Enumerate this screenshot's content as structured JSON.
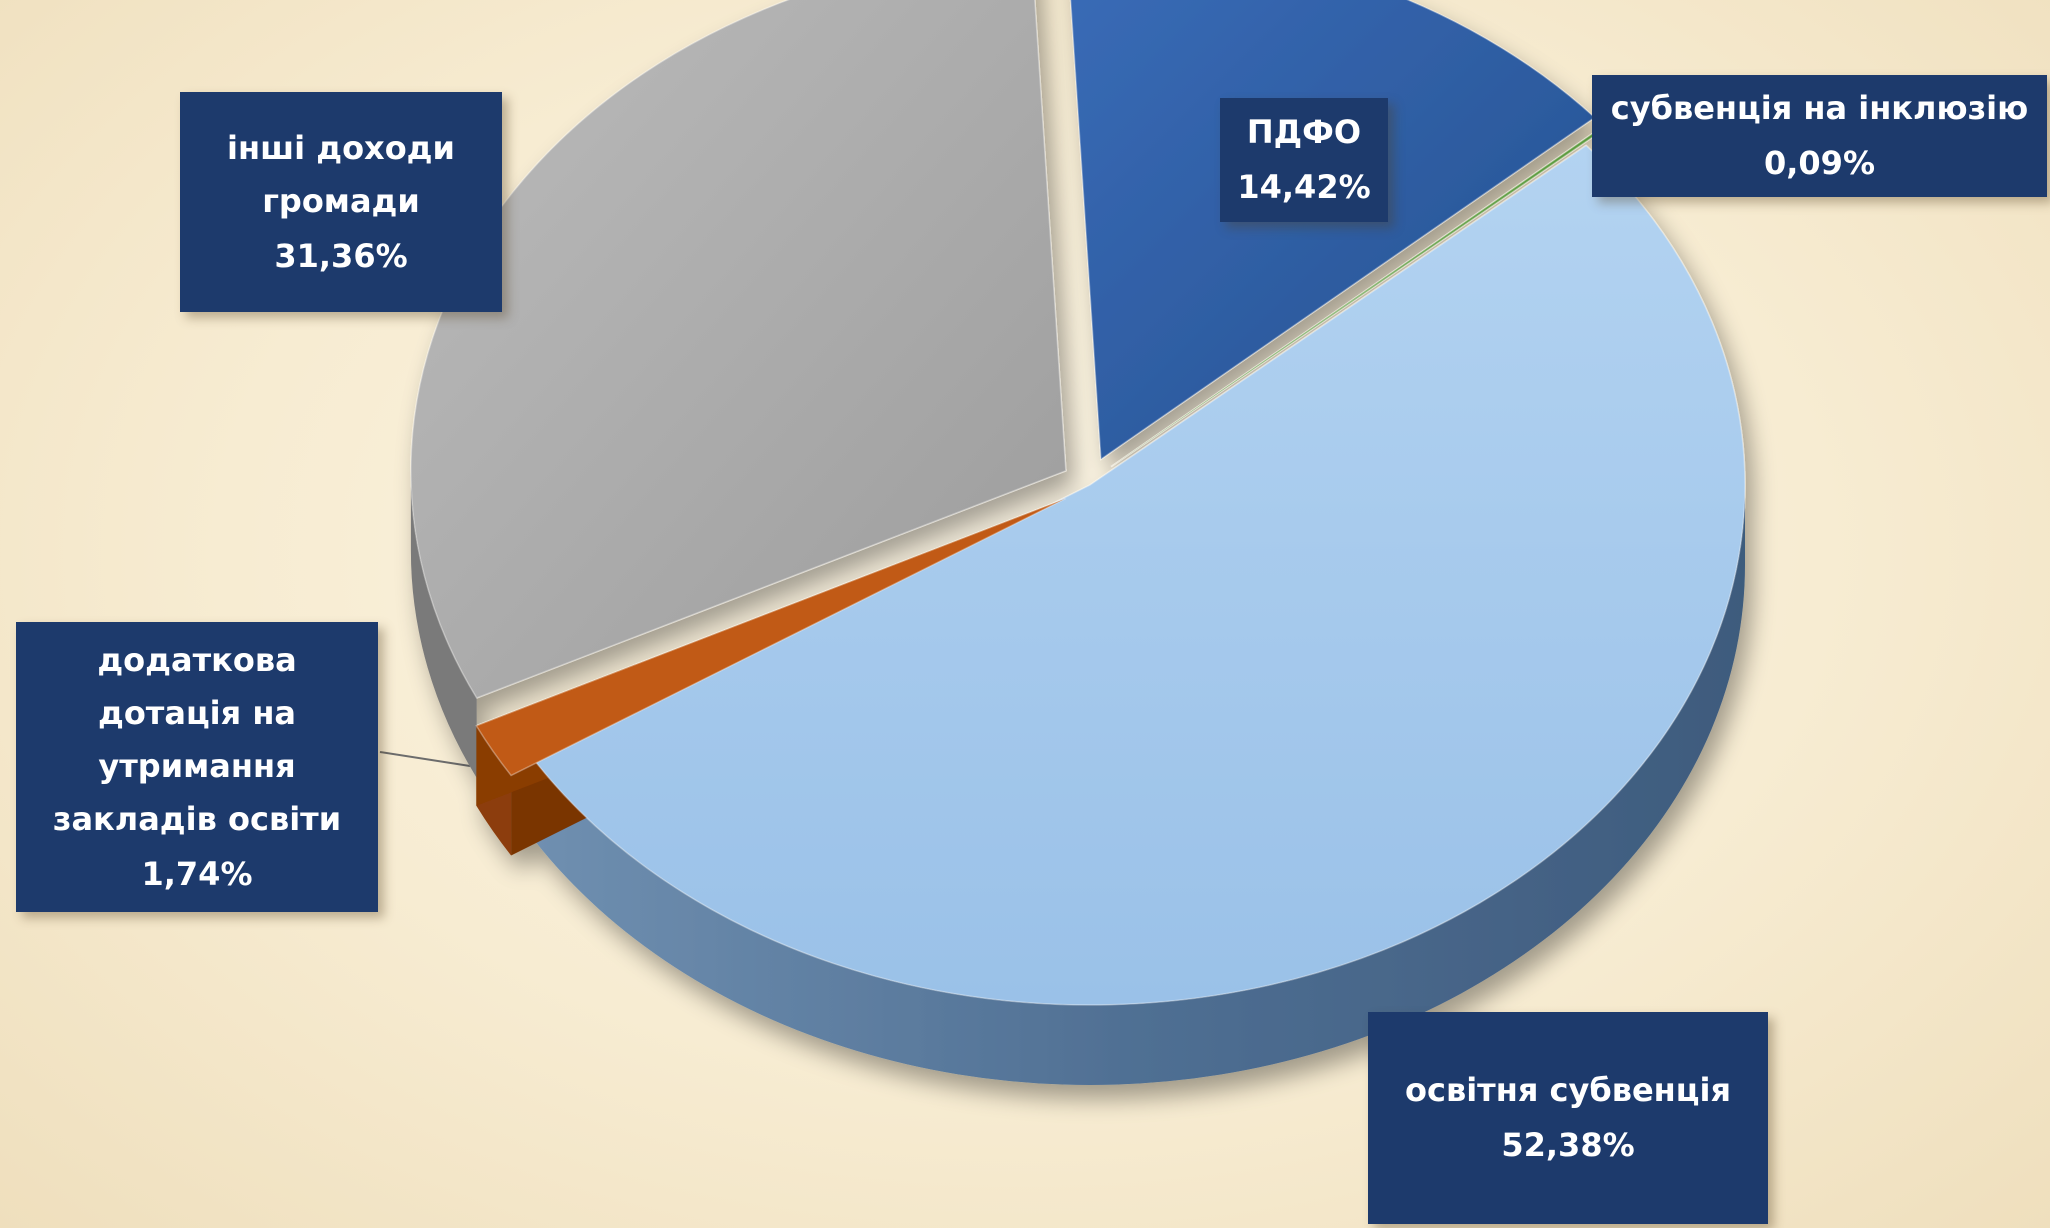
{
  "chart_data": {
    "type": "pie",
    "style": "3d-exploded",
    "title": "",
    "slices": [
      {
        "name": "ПДФО",
        "value": 14.42,
        "value_label": "14,42%",
        "color": "#2f5ea6"
      },
      {
        "name": "субвенція на інклюзію",
        "value": 0.09,
        "value_label": "0,09%",
        "color": "#5a9a3c"
      },
      {
        "name": "освітня субвенція",
        "value": 52.38,
        "value_label": "52,38%",
        "color": "#a6c9ec"
      },
      {
        "name": "додаткова дотація на утримання закладів освіти",
        "value": 1.74,
        "value_label": "1,74%",
        "color": "#c15a12"
      },
      {
        "name": "інші доходи громади",
        "value": 31.36,
        "value_label": "31,36%",
        "color": "#a8a8a8"
      }
    ]
  },
  "labels": {
    "pdfo": {
      "line1": "ПДФО",
      "value": "14,42%"
    },
    "inclusion": {
      "line1": "субвенція на інклюзію",
      "value": "0,09%"
    },
    "education": {
      "line1": "освітня субвенція",
      "value": "52,38%"
    },
    "additional": {
      "line1": "додаткова",
      "line2": "дотація на",
      "line3": "утримання",
      "line4": "закладів освіти",
      "value": "1,74%"
    },
    "other": {
      "line1": "інші доходи",
      "line2": "громади",
      "value": "31,36%"
    }
  },
  "colors": {
    "label_background": "#1d3a6c",
    "label_text": "#ffffff",
    "background": "#f7ecd2"
  }
}
